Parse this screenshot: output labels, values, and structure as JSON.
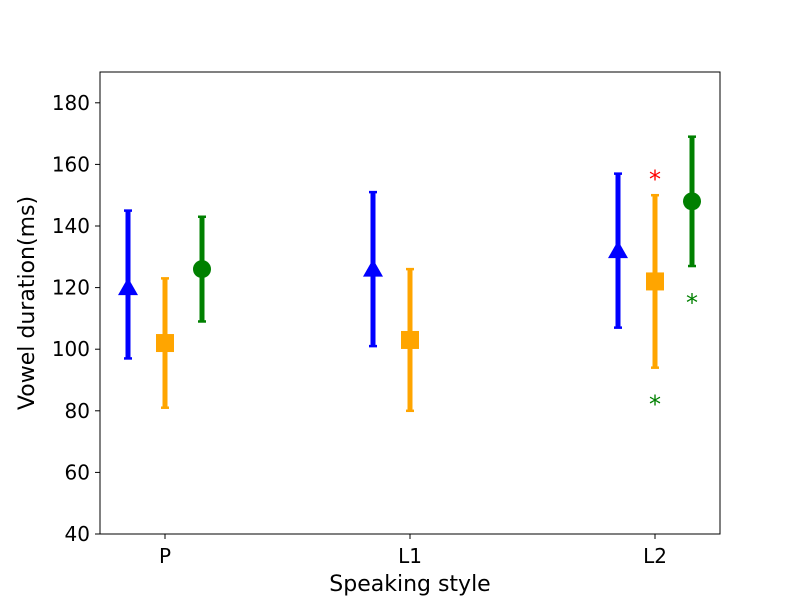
{
  "chart_data": {
    "type": "scatter",
    "title": "",
    "xlabel": "Speaking style",
    "ylabel": "Vowel duration(ms)",
    "categories": [
      "P",
      "L1",
      "L2"
    ],
    "ylim": [
      40,
      190
    ],
    "yticks": [
      40,
      60,
      80,
      100,
      120,
      140,
      160,
      180
    ],
    "grid": false,
    "legend": "none",
    "series": [
      {
        "color": "#0000ff",
        "marker": "triangle",
        "points": [
          {
            "category": "P",
            "mean": 120,
            "low": 97,
            "high": 145
          },
          {
            "category": "L1",
            "mean": 126,
            "low": 101,
            "high": 151
          },
          {
            "category": "L2",
            "mean": 132,
            "low": 107,
            "high": 157
          }
        ]
      },
      {
        "color": "#ffa500",
        "marker": "square",
        "points": [
          {
            "category": "P",
            "mean": 102,
            "low": 81,
            "high": 123
          },
          {
            "category": "L1",
            "mean": 103,
            "low": 80,
            "high": 126
          },
          {
            "category": "L2",
            "mean": 122,
            "low": 94,
            "high": 150
          }
        ]
      },
      {
        "color": "#008000",
        "marker": "circle",
        "points": [
          {
            "category": "P",
            "mean": 126,
            "low": 109,
            "high": 143
          },
          {
            "category": "L2",
            "mean": 148,
            "low": 127,
            "high": 169
          }
        ]
      }
    ],
    "annotations": [
      {
        "text": "*",
        "color": "#ff0000",
        "category": "L2",
        "series_index": 1,
        "y": 157
      },
      {
        "text": "*",
        "color": "#008000",
        "category": "L2",
        "series_index": 1,
        "y": 84
      },
      {
        "text": "*",
        "color": "#008000",
        "category": "L2",
        "series_index": 2,
        "y": 117
      }
    ]
  }
}
